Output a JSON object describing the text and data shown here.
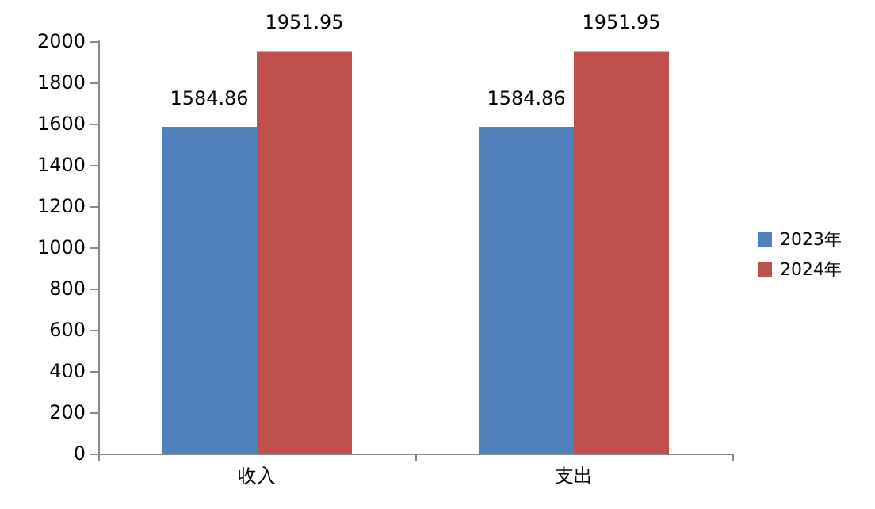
{
  "chart_data": {
    "type": "bar",
    "categories": [
      "收入",
      "支出"
    ],
    "series": [
      {
        "name": "2023年",
        "color": "#4f81bd",
        "values": [
          1584.86,
          1584.86
        ]
      },
      {
        "name": "2024年",
        "color": "#c0504d",
        "values": [
          1951.95,
          1951.95
        ]
      }
    ],
    "ylim": [
      0,
      2000
    ],
    "yticks": [
      0,
      200,
      400,
      600,
      800,
      1000,
      1200,
      1400,
      1600,
      1800,
      2000
    ],
    "grid": false,
    "legend": "right",
    "data_labels": true
  }
}
